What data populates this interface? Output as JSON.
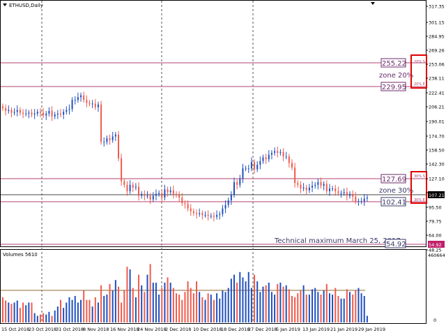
{
  "window": {
    "title": "ETHUSD,Daily",
    "volume_title": "Volumes 5610"
  },
  "price_axis": {
    "ticks": [
      "317.35",
      "301.15",
      "284.95",
      "269.26",
      "253.06",
      "238.11",
      "222.41",
      "206.21",
      "190.01",
      "174.70",
      "158.50",
      "142.30",
      "127.10",
      "111.16",
      "95.50",
      "79.75",
      "64.00",
      "48.25"
    ],
    "current_price": "107.21",
    "marker_price": "54.92"
  },
  "volume_axis": {
    "ticks": [
      "460664",
      "0"
    ]
  },
  "date_axis": {
    "labels": [
      "15 Oct 2018",
      "23 Oct 2018",
      "31 Oct 2018",
      "8 Nov 2018",
      "16 Nov 2018",
      "24 Nov 2018",
      "2 Dec 2018",
      "10 Dec 2018",
      "18 Dec 2018",
      "27 Dec 2018",
      "5 Jan 2019",
      "13 Jan 2019",
      "21 Jan 2019",
      "29 Jan 2019"
    ]
  },
  "annotations": {
    "level_255": "255.22",
    "zone20": "zone 20%",
    "level_230": "229.95",
    "level_127": "127.69",
    "zone30": "zone 30%",
    "level_102": "102.41",
    "tech_max": "Technical maximum March 25, 2017",
    "level_54": "54.92",
    "box20_top": "20% S",
    "box20_bot": "20% E",
    "box30_top": "30% S",
    "box30_bot": "30% E"
  },
  "colors": {
    "bull": "#1f4fbf",
    "bear": "#f05a4a",
    "level_line": "#b04070",
    "zone_box": "#e00000",
    "annotation_text": "#6a2a6a",
    "ma_line": "#8c6a3a"
  },
  "chart_data": {
    "type": "candlestick",
    "symbol": "ETHUSD",
    "timeframe": "Daily",
    "ylim": [
      48.25,
      317.35
    ],
    "levels": [
      255.22,
      229.95,
      127.69,
      102.41,
      54.92
    ],
    "current_price": 107.21,
    "closes": [
      205,
      202,
      203,
      200,
      201,
      203,
      200,
      199,
      199,
      200,
      198,
      199,
      201,
      200,
      197,
      199,
      202,
      196,
      198,
      199,
      198,
      201,
      203,
      204,
      214,
      214,
      217,
      219,
      214,
      211,
      210,
      210,
      206,
      209,
      168,
      168,
      172,
      170,
      174,
      176,
      150,
      125,
      121,
      114,
      121,
      118,
      119,
      109,
      111,
      109,
      109,
      105,
      109,
      111,
      112,
      107,
      116,
      113,
      115,
      111,
      110,
      107,
      101,
      100,
      95,
      92,
      90,
      89,
      90,
      88,
      88,
      87,
      87,
      86,
      88,
      89,
      95,
      99,
      104,
      110,
      124,
      121,
      128,
      139,
      139,
      139,
      146,
      138,
      143,
      147,
      151,
      149,
      154,
      156,
      158,
      156,
      157,
      152,
      152,
      145,
      140,
      123,
      121,
      117,
      118,
      115,
      118,
      120,
      121,
      124,
      120,
      122,
      114,
      117,
      117,
      114,
      112,
      112,
      113,
      109,
      111,
      108,
      103,
      103,
      103,
      106,
      107
    ],
    "volumes_relative": [
      0.38,
      0.33,
      0.3,
      0.28,
      0.3,
      0.33,
      0.22,
      0.3,
      0.26,
      0.3,
      0.3,
      0.14,
      0.1,
      0.12,
      0.14,
      0.12,
      0.16,
      0.1,
      0.18,
      0.24,
      0.34,
      0.22,
      0.3,
      0.38,
      0.34,
      0.4,
      0.3,
      0.34,
      0.48,
      0.34,
      0.34,
      0.24,
      0.38,
      0.3,
      0.56,
      0.4,
      0.42,
      0.58,
      0.48,
      0.64,
      0.54,
      0.3,
      0.48,
      0.84,
      0.8,
      0.52,
      0.38,
      0.72,
      0.56,
      0.46,
      0.72,
      0.88,
      0.6,
      0.6,
      0.42,
      0.52,
      0.6,
      0.68,
      0.6,
      0.52,
      0.44,
      0.42,
      0.34,
      0.46,
      0.62,
      0.52,
      0.44,
      0.62,
      0.46,
      0.38,
      0.34,
      0.44,
      0.42,
      0.34,
      0.44,
      0.36,
      0.48,
      0.46,
      0.52,
      0.66,
      0.72,
      0.6,
      0.76,
      0.68,
      0.62,
      0.76,
      0.52,
      0.72,
      0.62,
      0.46,
      0.54,
      0.56,
      0.6,
      0.46,
      0.42,
      0.58,
      0.6,
      0.54,
      0.56,
      0.5,
      0.4,
      0.38,
      0.44,
      0.48,
      0.56,
      0.42,
      0.42,
      0.5,
      0.52,
      0.46,
      0.42,
      0.48,
      0.58,
      0.44,
      0.42,
      0.52,
      0.4,
      0.36,
      0.36,
      0.5,
      0.46,
      0.42,
      0.48,
      0.52,
      0.44,
      0.4,
      0.1
    ],
    "dashed_vertical_dates": [
      "23 Oct 2018",
      "24 Nov 2018",
      "27 Dec 2018"
    ]
  }
}
